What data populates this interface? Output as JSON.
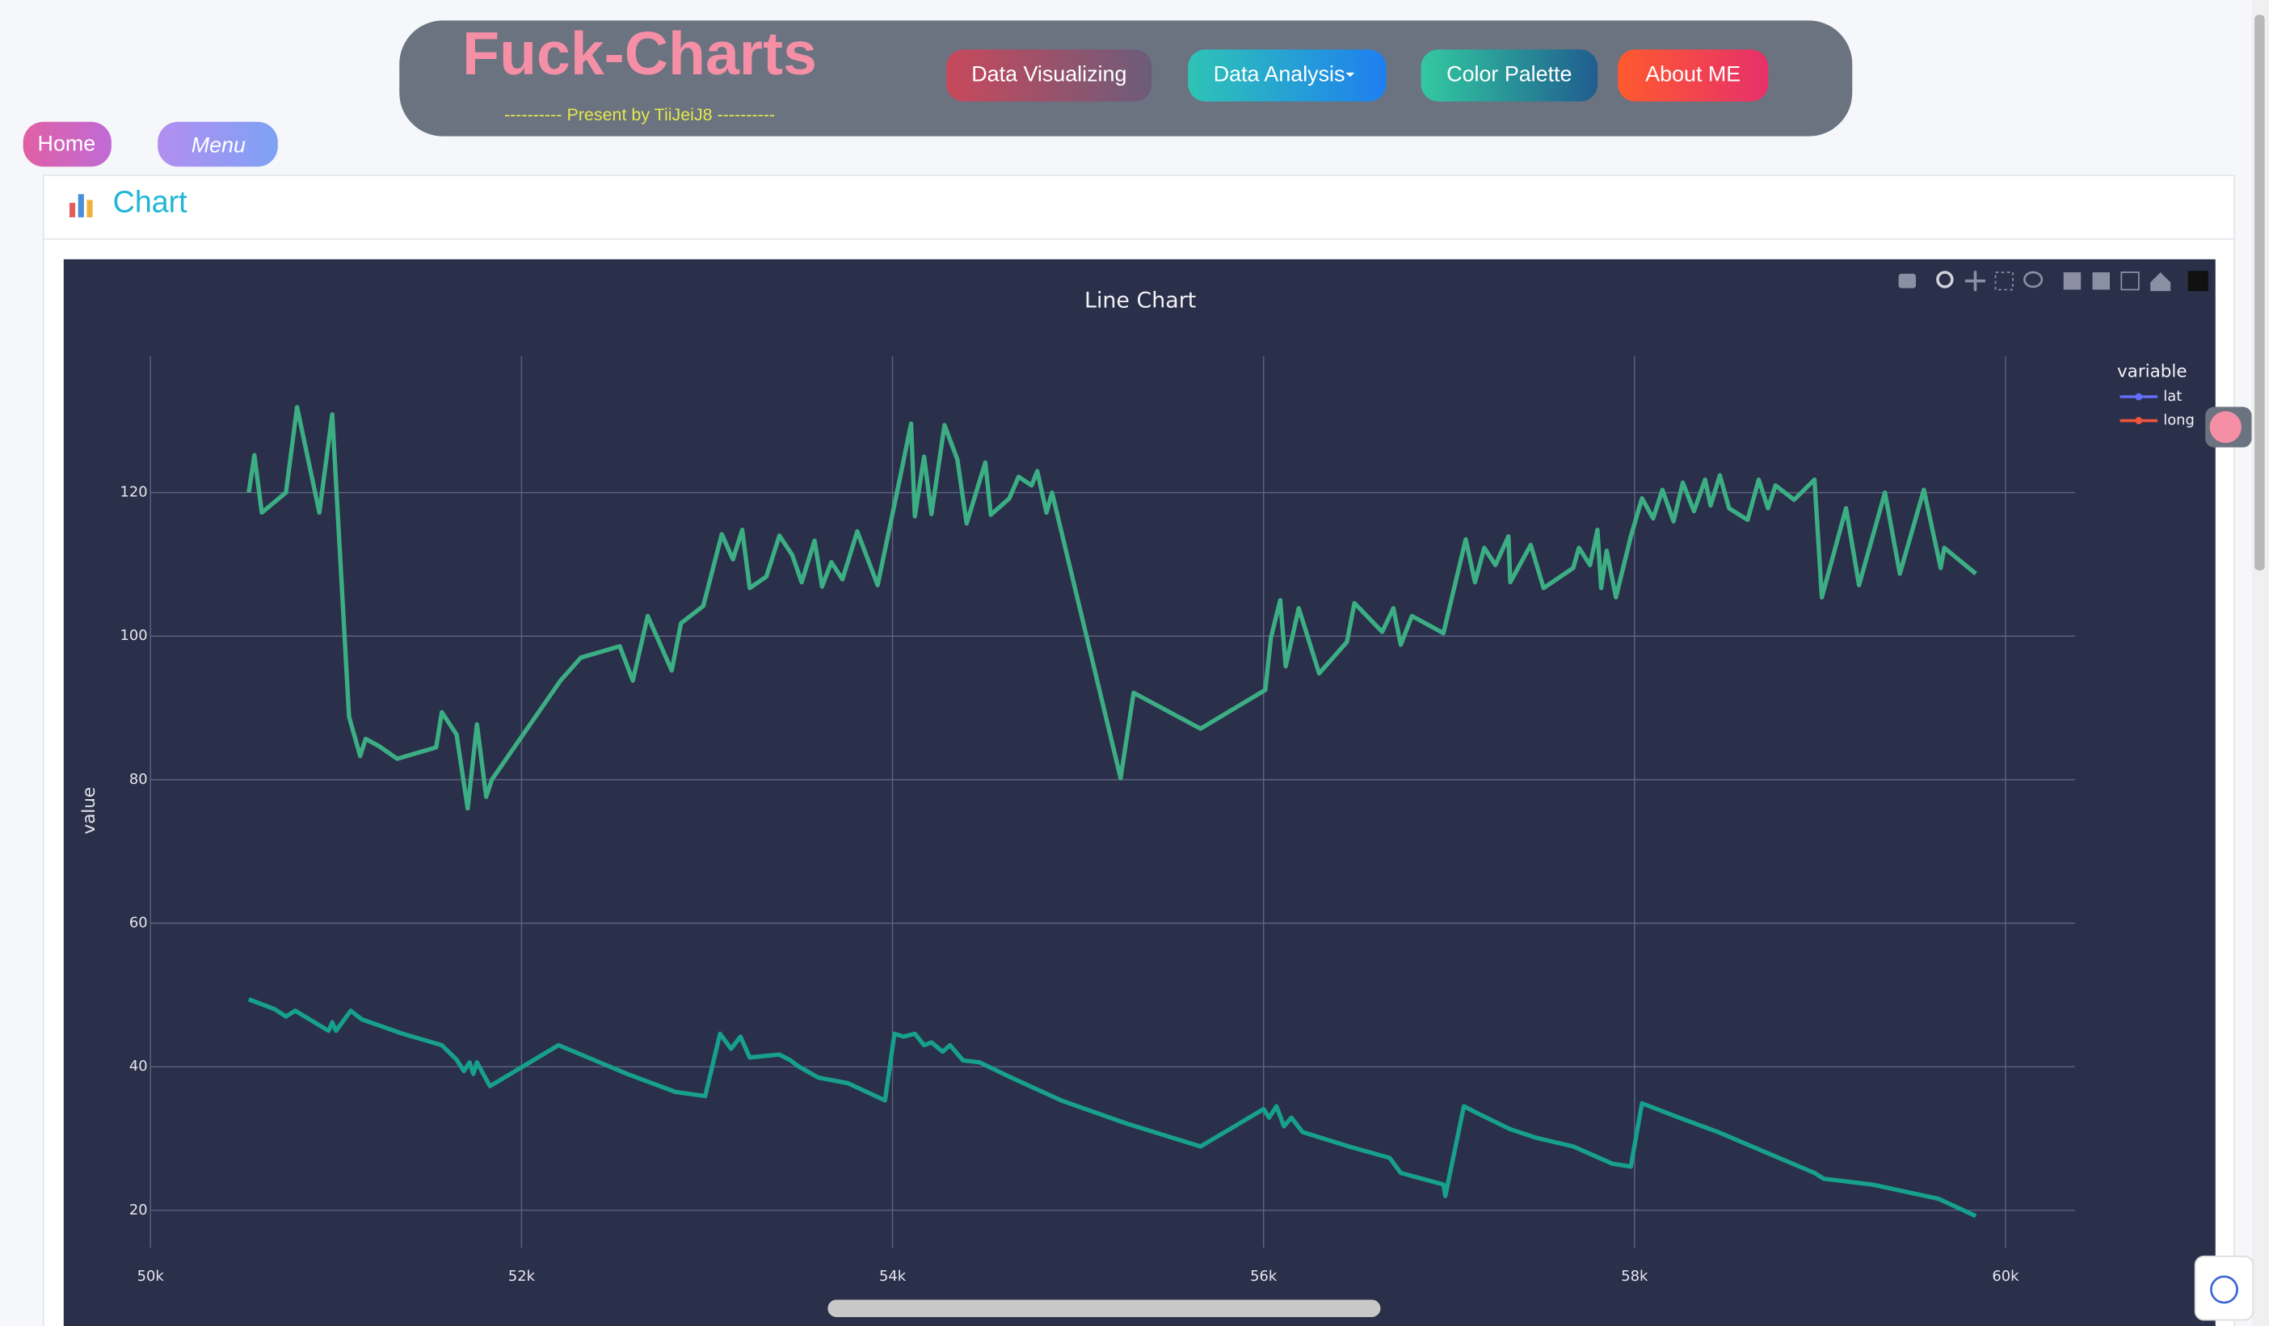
{
  "header": {
    "brand": "Fuck-Charts",
    "subtitle": "---------- Present by TiiJeiJ8 ----------",
    "nav": [
      "Data Visualizing",
      "Data Analysis",
      "Color Palette",
      "About ME"
    ]
  },
  "side": {
    "home": "Home",
    "menu": "Menu"
  },
  "card": {
    "title": "Chart"
  },
  "chart_data": {
    "type": "line",
    "title": "Line Chart",
    "y_label": "value",
    "legend_title": "variable",
    "grid": true,
    "xlim": [
      50000,
      60375
    ],
    "ylim": [
      14.8,
      139
    ],
    "xticks": [
      {
        "value": 50000,
        "label": "50k"
      },
      {
        "value": 52000,
        "label": "52k"
      },
      {
        "value": 54000,
        "label": "54k"
      },
      {
        "value": 56000,
        "label": "56k"
      },
      {
        "value": 58000,
        "label": "58k"
      },
      {
        "value": 60000,
        "label": "60k"
      }
    ],
    "yticks": [
      20,
      40,
      60,
      80,
      100,
      120
    ],
    "series": [
      {
        "name": "lat",
        "color": "#17a08c",
        "legend_color": "#636efa",
        "x": [
          50530,
          50670,
          50730,
          50780,
          50960,
          50980,
          51000,
          51080,
          51140,
          51360,
          51570,
          51650,
          51690,
          51720,
          51740,
          51760,
          51830,
          52200,
          52570,
          52830,
          52990,
          53070,
          53130,
          53180,
          53230,
          53390,
          53450,
          53490,
          53600,
          53760,
          53960,
          54010,
          54060,
          54120,
          54170,
          54210,
          54270,
          54310,
          54380,
          54470,
          54640,
          54910,
          55260,
          55660,
          56000,
          56030,
          56070,
          56110,
          56150,
          56210,
          56460,
          56680,
          56740,
          56970,
          56980,
          57080,
          57140,
          57330,
          57470,
          57670,
          57880,
          57980,
          58040,
          58240,
          58450,
          58670,
          58970,
          59020,
          59280,
          59640,
          59840
        ],
        "values": [
          49.4,
          48.0,
          47.0,
          47.8,
          45.0,
          46.2,
          45.0,
          47.8,
          46.6,
          44.6,
          43.0,
          41.0,
          39.4,
          40.6,
          39.0,
          40.6,
          37.3,
          43.0,
          39.0,
          36.5,
          35.9,
          44.6,
          42.5,
          44.2,
          41.3,
          41.7,
          40.9,
          40.1,
          38.5,
          37.7,
          35.3,
          44.6,
          44.2,
          44.6,
          43.0,
          43.4,
          42.1,
          43.0,
          40.9,
          40.6,
          38.5,
          35.3,
          32.1,
          28.9,
          34.1,
          32.9,
          34.5,
          31.7,
          32.9,
          30.9,
          28.9,
          27.3,
          25.2,
          23.6,
          22.0,
          34.5,
          33.7,
          31.3,
          30.1,
          28.9,
          26.5,
          26.1,
          34.9,
          32.9,
          30.9,
          28.5,
          25.2,
          24.4,
          23.6,
          21.6,
          19.2
        ]
      },
      {
        "name": "long",
        "color": "#3cae84",
        "legend_color": "#ef553b",
        "x": [
          50530,
          50560,
          50600,
          50730,
          50790,
          50910,
          50980,
          51070,
          51130,
          51160,
          51230,
          51330,
          51540,
          51570,
          51650,
          51710,
          51760,
          51810,
          51840,
          52210,
          52320,
          52530,
          52600,
          52680,
          52810,
          52860,
          52980,
          53080,
          53140,
          53190,
          53230,
          53320,
          53390,
          53460,
          53510,
          53580,
          53620,
          53670,
          53730,
          53810,
          53920,
          54040,
          54100,
          54120,
          54170,
          54210,
          54280,
          54350,
          54400,
          54500,
          54530,
          54630,
          54680,
          54750,
          54780,
          54830,
          54860,
          55230,
          55300,
          55660,
          56010,
          56040,
          56090,
          56120,
          56190,
          56300,
          56450,
          56490,
          56640,
          56700,
          56740,
          56800,
          56970,
          57090,
          57140,
          57190,
          57250,
          57320,
          57330,
          57440,
          57510,
          57670,
          57700,
          57760,
          57800,
          57820,
          57850,
          57900,
          57980,
          58040,
          58100,
          58150,
          58210,
          58260,
          58320,
          58380,
          58410,
          58460,
          58510,
          58610,
          58670,
          58720,
          58760,
          58860,
          58970,
          59010,
          59140,
          59210,
          59350,
          59430,
          59560,
          59650,
          59670,
          59840
        ],
        "values": [
          120,
          125.2,
          117.2,
          120,
          131.9,
          117.2,
          130.9,
          88.8,
          83.3,
          85.7,
          84.7,
          82.9,
          84.5,
          89.4,
          86.3,
          76.0,
          87.7,
          77.6,
          80.0,
          93.8,
          97.0,
          98.6,
          93.8,
          102.8,
          95.2,
          101.8,
          104.2,
          114.2,
          110.7,
          114.8,
          106.7,
          108.3,
          114.0,
          111.3,
          107.5,
          113.3,
          106.9,
          110.3,
          107.9,
          114.6,
          107.1,
          122.0,
          129.6,
          116.7,
          125.0,
          117.0,
          129.4,
          124.6,
          115.7,
          124.2,
          116.9,
          119.2,
          122.2,
          121.0,
          123.0,
          117.2,
          120.0,
          80.2,
          92.1,
          87.1,
          92.5,
          99.8,
          105.0,
          95.8,
          103.9,
          94.8,
          99.2,
          104.6,
          100.6,
          103.9,
          98.8,
          102.8,
          100.4,
          113.5,
          107.5,
          112.3,
          109.9,
          113.9,
          107.5,
          112.7,
          106.7,
          109.5,
          112.3,
          109.9,
          114.8,
          106.7,
          111.9,
          105.4,
          113.9,
          119.2,
          116.4,
          120.4,
          116.0,
          121.4,
          117.4,
          121.8,
          118.2,
          122.4,
          117.8,
          116.2,
          121.8,
          117.8,
          121.0,
          119.0,
          121.8,
          105.4,
          117.8,
          107.1,
          120.0,
          108.7,
          120.4,
          109.5,
          112.3,
          108.7
        ]
      }
    ]
  }
}
